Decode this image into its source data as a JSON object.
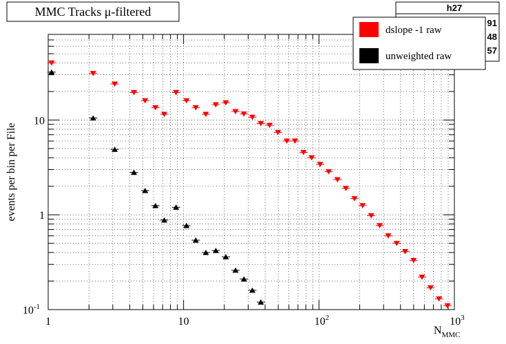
{
  "chart_data": {
    "type": "scatter",
    "title": "MMC Tracks μ-filtered",
    "stats_box_title": "h27",
    "stats_box_fragments": [
      "91",
      "48",
      "57"
    ],
    "xlabel_main": "N",
    "xlabel_sub": "MMC",
    "ylabel": "events per bin per File",
    "x_scale": "log",
    "y_scale": "log",
    "xlim": [
      1,
      1000
    ],
    "ylim": [
      0.1,
      80
    ],
    "grid": true,
    "legend_position": "top-right",
    "x_tick_labels": [
      {
        "value": 1,
        "base": "1",
        "exp": ""
      },
      {
        "value": 10,
        "base": "10",
        "exp": ""
      },
      {
        "value": 100,
        "base": "10",
        "exp": "2"
      },
      {
        "value": 1000,
        "base": "10",
        "exp": "3"
      }
    ],
    "y_tick_labels": [
      {
        "value": 0.1,
        "base": "10",
        "exp": "-1"
      },
      {
        "value": 1,
        "base": "1",
        "exp": ""
      },
      {
        "value": 10,
        "base": "10",
        "exp": ""
      }
    ],
    "series": [
      {
        "name": "dslope -1 raw",
        "color": "#ff0000",
        "marker": "triangle-down",
        "x": [
          1.06,
          2.15,
          3.1,
          4.3,
          5.2,
          6.2,
          7.2,
          8.8,
          10.5,
          12.3,
          14.6,
          17.3,
          20.5,
          24.2,
          27.9,
          32.2,
          37.2,
          43.2,
          49.8,
          57.9,
          66.5,
          76.9,
          88.3,
          102,
          118,
          137,
          158,
          183,
          210,
          243,
          281,
          325,
          375,
          433,
          500,
          577,
          667,
          770,
          890,
          1026
        ],
        "y": [
          40,
          31,
          24,
          19.5,
          16,
          13.5,
          11.5,
          19.5,
          16,
          13.5,
          11.5,
          14.5,
          15.2,
          12.3,
          11.6,
          10.7,
          9.2,
          8.8,
          7.4,
          6.0,
          6.0,
          4.55,
          4.0,
          3.4,
          2.85,
          2.35,
          1.9,
          1.48,
          1.25,
          0.98,
          0.77,
          0.6,
          0.5,
          0.41,
          0.33,
          0.22,
          0.17,
          0.13,
          0.11,
          0.08
        ]
      },
      {
        "name": "unweighted raw",
        "color": "#000000",
        "marker": "triangle-up",
        "x": [
          1.06,
          2.15,
          3.1,
          4.3,
          5.2,
          6.2,
          7.2,
          8.8,
          10.5,
          12.3,
          14.6,
          17.3,
          20.5,
          24.2,
          27.9,
          32.2,
          37.2
        ],
        "y": [
          32,
          10.5,
          4.9,
          2.8,
          1.8,
          1.25,
          0.88,
          1.2,
          0.77,
          0.54,
          0.4,
          0.42,
          0.36,
          0.26,
          0.21,
          0.16,
          0.12
        ]
      }
    ]
  }
}
